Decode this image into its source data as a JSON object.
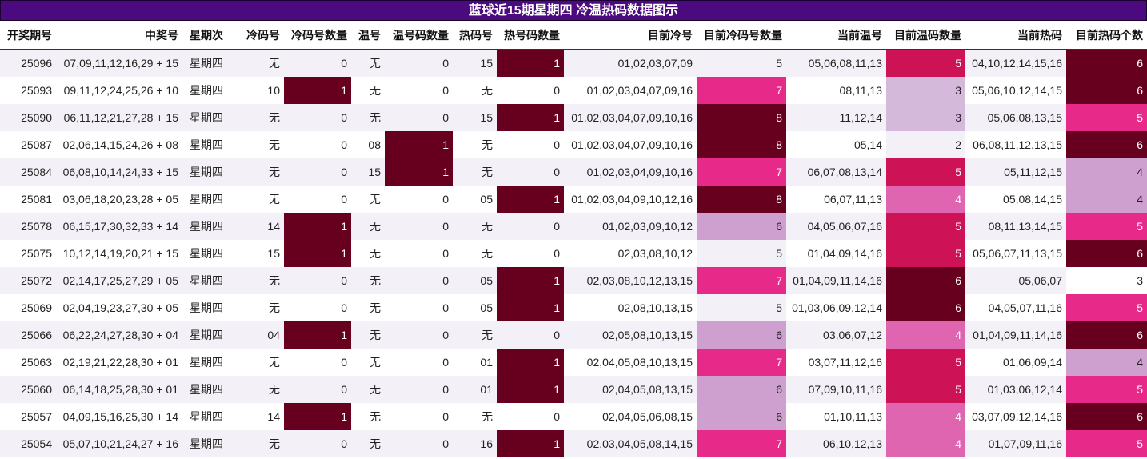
{
  "title": "蓝球近15期星期四 冷温热码数据图示",
  "columns": [
    "开奖期号",
    "中奖号",
    "星期次",
    "冷码号",
    "冷码号数量",
    "温号",
    "温号码数量",
    "热码号",
    "热号码数量",
    "目前冷号",
    "目前冷码号数量",
    "当前温号",
    "目前温码数量",
    "当前热码",
    "目前热码个数"
  ],
  "colors": {
    "c0": "#f3f1f7",
    "c1": "#cda0cf",
    "c2": "#d4b9da",
    "c3": "#df65b0",
    "c4": "#e7298a",
    "c5": "#ce1256",
    "c6": "#67001f",
    "c7": "#ffffff"
  },
  "rows": [
    {
      "cells": [
        "25096",
        "07,09,11,12,16,29 + 15",
        "星期四",
        "无",
        "0",
        "无",
        "0",
        "15",
        "1",
        "01,02,03,07,09",
        "5",
        "05,06,08,11,13",
        "5",
        "04,10,12,14,15,16",
        "6"
      ],
      "heat": {
        "8": "c6",
        "12": "c5",
        "14": "c6"
      }
    },
    {
      "cells": [
        "25093",
        "09,11,12,24,25,26 + 10",
        "星期四",
        "10",
        "1",
        "无",
        "0",
        "无",
        "0",
        "01,02,03,04,07,09,16",
        "7",
        "08,11,13",
        "3",
        "05,06,10,12,14,15",
        "6"
      ],
      "heat": {
        "4": "c6",
        "10": "c4",
        "12": "c2",
        "14": "c6"
      }
    },
    {
      "cells": [
        "25090",
        "06,11,12,21,27,28 + 15",
        "星期四",
        "无",
        "0",
        "无",
        "0",
        "15",
        "1",
        "01,02,03,04,07,09,10,16",
        "8",
        "11,12,14",
        "3",
        "05,06,08,13,15",
        "5"
      ],
      "heat": {
        "8": "c6",
        "10": "c6",
        "12": "c2",
        "14": "c4"
      }
    },
    {
      "cells": [
        "25087",
        "02,06,14,15,24,26 + 08",
        "星期四",
        "无",
        "0",
        "08",
        "1",
        "无",
        "0",
        "01,02,03,04,07,09,10,16",
        "8",
        "05,14",
        "2",
        "06,08,11,12,13,15",
        "6"
      ],
      "heat": {
        "6": "c6",
        "10": "c6",
        "12": "c0",
        "14": "c6"
      }
    },
    {
      "cells": [
        "25084",
        "06,08,10,14,24,33 + 15",
        "星期四",
        "无",
        "0",
        "15",
        "1",
        "无",
        "0",
        "01,02,03,04,09,10,16",
        "7",
        "06,07,08,13,14",
        "5",
        "05,11,12,15",
        "4"
      ],
      "heat": {
        "6": "c6",
        "10": "c4",
        "12": "c5",
        "14": "c1"
      }
    },
    {
      "cells": [
        "25081",
        "03,06,18,20,23,28 + 05",
        "星期四",
        "无",
        "0",
        "无",
        "0",
        "05",
        "1",
        "01,02,03,04,09,10,12,16",
        "8",
        "06,07,11,13",
        "4",
        "05,08,14,15",
        "4"
      ],
      "heat": {
        "8": "c6",
        "10": "c6",
        "12": "c3",
        "14": "c1"
      }
    },
    {
      "cells": [
        "25078",
        "06,15,17,30,32,33 + 14",
        "星期四",
        "14",
        "1",
        "无",
        "0",
        "无",
        "0",
        "01,02,03,09,10,12",
        "6",
        "04,05,06,07,16",
        "5",
        "08,11,13,14,15",
        "5"
      ],
      "heat": {
        "4": "c6",
        "10": "c1",
        "12": "c5",
        "14": "c4"
      }
    },
    {
      "cells": [
        "25075",
        "10,12,14,19,20,21 + 15",
        "星期四",
        "15",
        "1",
        "无",
        "0",
        "无",
        "0",
        "02,03,08,10,12",
        "5",
        "01,04,09,14,16",
        "5",
        "05,06,07,11,13,15",
        "6"
      ],
      "heat": {
        "4": "c6",
        "10": "c0",
        "12": "c5",
        "14": "c6"
      }
    },
    {
      "cells": [
        "25072",
        "02,14,17,25,27,29 + 05",
        "星期四",
        "无",
        "0",
        "无",
        "0",
        "05",
        "1",
        "02,03,08,10,12,13,15",
        "7",
        "01,04,09,11,14,16",
        "6",
        "05,06,07",
        "3"
      ],
      "heat": {
        "8": "c6",
        "10": "c4",
        "12": "c6",
        "14": "c7"
      }
    },
    {
      "cells": [
        "25069",
        "02,04,19,23,27,30 + 05",
        "星期四",
        "无",
        "0",
        "无",
        "0",
        "05",
        "1",
        "02,08,10,13,15",
        "5",
        "01,03,06,09,12,14",
        "6",
        "04,05,07,11,16",
        "5"
      ],
      "heat": {
        "8": "c6",
        "10": "c0",
        "12": "c6",
        "14": "c4"
      }
    },
    {
      "cells": [
        "25066",
        "06,22,24,27,28,30 + 04",
        "星期四",
        "04",
        "1",
        "无",
        "0",
        "无",
        "0",
        "02,05,08,10,13,15",
        "6",
        "03,06,07,12",
        "4",
        "01,04,09,11,14,16",
        "6"
      ],
      "heat": {
        "4": "c6",
        "10": "c1",
        "12": "c3",
        "14": "c6"
      }
    },
    {
      "cells": [
        "25063",
        "02,19,21,22,28,30 + 01",
        "星期四",
        "无",
        "0",
        "无",
        "0",
        "01",
        "1",
        "02,04,05,08,10,13,15",
        "7",
        "03,07,11,12,16",
        "5",
        "01,06,09,14",
        "4"
      ],
      "heat": {
        "8": "c6",
        "10": "c4",
        "12": "c5",
        "14": "c1"
      }
    },
    {
      "cells": [
        "25060",
        "06,14,18,25,28,30 + 01",
        "星期四",
        "无",
        "0",
        "无",
        "0",
        "01",
        "1",
        "02,04,05,08,13,15",
        "6",
        "07,09,10,11,16",
        "5",
        "01,03,06,12,14",
        "5"
      ],
      "heat": {
        "8": "c6",
        "10": "c1",
        "12": "c5",
        "14": "c4"
      }
    },
    {
      "cells": [
        "25057",
        "04,09,15,16,25,30 + 14",
        "星期四",
        "14",
        "1",
        "无",
        "0",
        "无",
        "0",
        "02,04,05,06,08,15",
        "6",
        "01,10,11,13",
        "4",
        "03,07,09,12,14,16",
        "6"
      ],
      "heat": {
        "4": "c6",
        "10": "c1",
        "12": "c3",
        "14": "c6"
      }
    },
    {
      "cells": [
        "25054",
        "05,07,10,21,24,27 + 16",
        "星期四",
        "无",
        "0",
        "无",
        "0",
        "16",
        "1",
        "02,03,04,05,08,14,15",
        "7",
        "06,10,12,13",
        "4",
        "01,07,09,11,16",
        "5"
      ],
      "heat": {
        "8": "c6",
        "10": "c4",
        "12": "c3",
        "14": "c4"
      }
    }
  ]
}
